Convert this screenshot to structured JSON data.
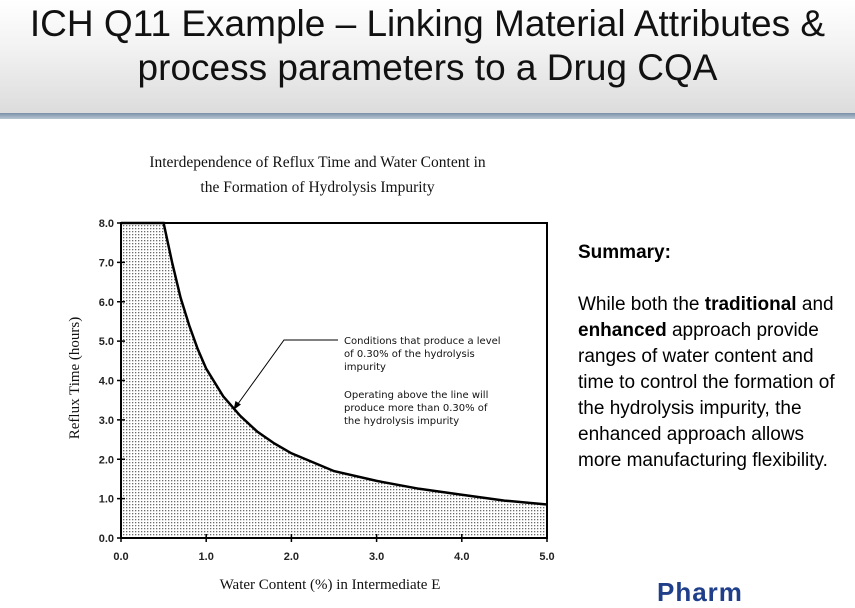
{
  "slide": {
    "title_line1": "ICH Q11 Example – Linking Material Attributes &",
    "title_line2": "process parameters to a Drug CQA"
  },
  "chart_data": {
    "type": "area",
    "title_line1": "Interdependence of Reflux Time and Water Content in",
    "title_line2": "the Formation of Hydrolysis Impurity",
    "xlabel": "Water Content (%) in Intermediate E",
    "ylabel": "Reflux Time (hours)",
    "xlim": [
      0,
      5
    ],
    "ylim": [
      0,
      8
    ],
    "x_ticks": [
      "0.0",
      "1.0",
      "2.0",
      "3.0",
      "4.0",
      "5.0"
    ],
    "y_ticks": [
      "0.0",
      "1.0",
      "2.0",
      "3.0",
      "4.0",
      "5.0",
      "6.0",
      "7.0",
      "8.0"
    ],
    "series": [
      {
        "x": [
          0.0,
          0.5,
          0.6,
          0.7,
          0.8,
          0.9,
          1.0,
          1.2,
          1.4,
          1.6,
          1.8,
          2.0,
          2.5,
          3.0,
          3.5,
          4.0,
          4.5,
          5.0
        ],
        "y": [
          8.0,
          8.0,
          7.0,
          6.1,
          5.4,
          4.8,
          4.3,
          3.6,
          3.1,
          2.7,
          2.4,
          2.15,
          1.7,
          1.45,
          1.25,
          1.1,
          0.95,
          0.85
        ]
      }
    ],
    "shaded_region": "below curve",
    "grid": false,
    "annotation": {
      "line1": "Conditions that produce a level",
      "line2": "of 0.30% of the hydrolysis",
      "line3": "impurity",
      "line4": "Operating above the line will",
      "line5": "produce more than 0.30% of",
      "line6": "the hydrolysis impurity",
      "arrow_target_x": 1.32,
      "arrow_target_y": 3.25
    }
  },
  "summary": {
    "heading": "Summary:",
    "text_1": "While both the ",
    "bold_1": "traditional",
    "text_2": " and ",
    "bold_2": "enhanced",
    "text_3": " approach provide ranges of water content and time to control the formation of the hydrolysis impurity, the enhanced approach allows more manufacturing flexibility."
  },
  "logo": {
    "text": "Pharm"
  }
}
